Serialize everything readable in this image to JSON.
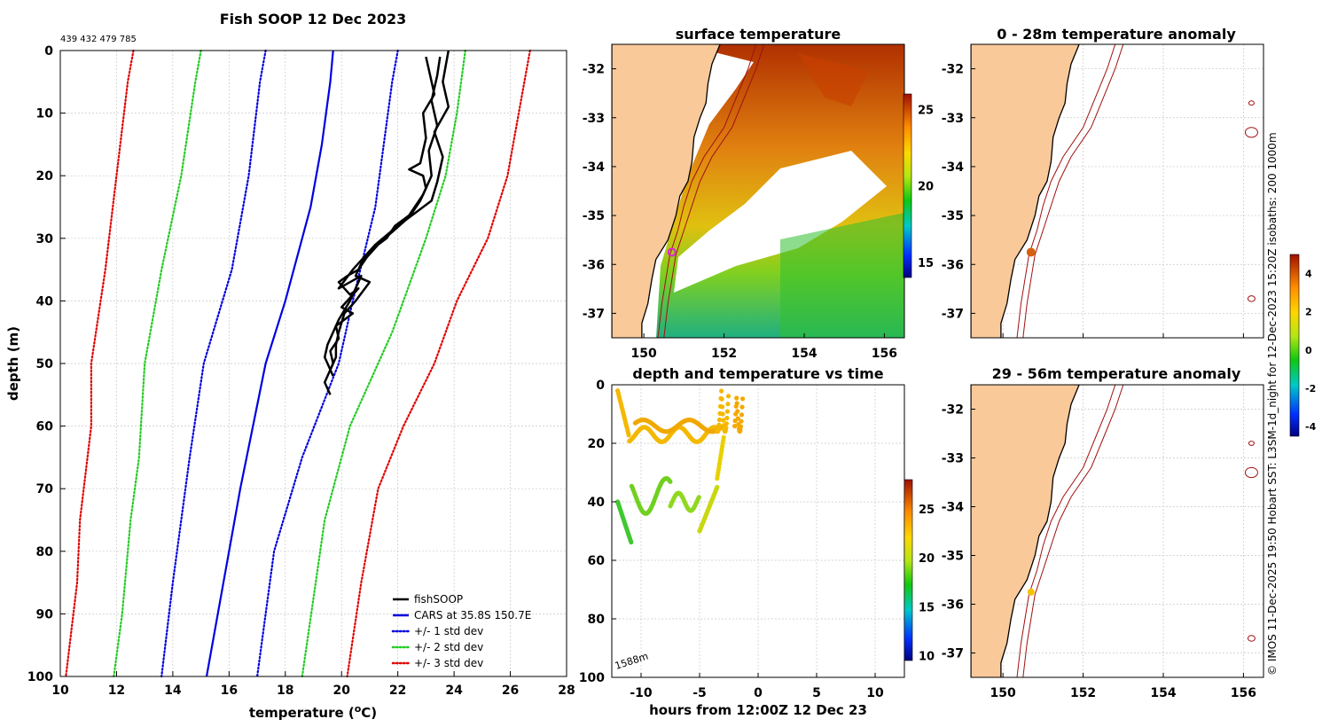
{
  "colors": {
    "land": "#f9c99a",
    "fishsoop": "#000000",
    "cars": "#0000e0",
    "std1": "#0000e0",
    "std2": "#22cc22",
    "std3": "#e00000",
    "grid": "#c8c8c8",
    "isobath": "#a01010",
    "marker_surface": "#e020e0",
    "marker_anom1": "#d66010",
    "marker_anom2": "#f4c000"
  },
  "copyright": "© IMOS 11-Dec-2025 19:50 Hobart SST: L3SM-1d_night for 12-Dec-2023 15:20Z isobaths: 200  1000m",
  "chart_data": [
    {
      "id": "profile",
      "type": "line",
      "title": "Fish SOOP 12 Dec 2023",
      "subtitle": "439 432 479 785",
      "xlabel_main": "temperature (",
      "xlabel_sup": "o",
      "xlabel_end": "C)",
      "ylabel": "depth (m)",
      "xlim": [
        10,
        28
      ],
      "ylim": [
        0,
        100
      ],
      "xticks": [
        10,
        12,
        14,
        16,
        18,
        20,
        22,
        24,
        26,
        28
      ],
      "yticks": [
        0,
        10,
        20,
        30,
        40,
        50,
        60,
        70,
        80,
        90,
        100
      ],
      "legend": [
        "fishSOOP",
        "CARS at 35.8S 150.7E",
        "+/- 1 std dev",
        "+/- 2 std dev",
        "+/- 3 std dev"
      ],
      "series": [
        {
          "name": "CARS mean",
          "style": "solid",
          "color": "cars",
          "points": [
            [
              19.7,
              0
            ],
            [
              19.6,
              5
            ],
            [
              19.3,
              15
            ],
            [
              18.9,
              25
            ],
            [
              18.0,
              40
            ],
            [
              17.3,
              50
            ],
            [
              16.4,
              70
            ],
            [
              15.8,
              85
            ],
            [
              15.2,
              100
            ]
          ]
        },
        {
          "name": "-1 std",
          "style": "dot",
          "color": "std1",
          "points": [
            [
              17.3,
              0
            ],
            [
              17.1,
              5
            ],
            [
              16.7,
              20
            ],
            [
              16.1,
              35
            ],
            [
              15.1,
              50
            ],
            [
              14.6,
              65
            ],
            [
              14.0,
              85
            ],
            [
              13.6,
              100
            ]
          ]
        },
        {
          "name": "+1 std",
          "style": "dot",
          "color": "std1",
          "points": [
            [
              22.0,
              0
            ],
            [
              21.8,
              5
            ],
            [
              21.5,
              15
            ],
            [
              21.2,
              25
            ],
            [
              20.4,
              40
            ],
            [
              19.9,
              50
            ],
            [
              18.6,
              65
            ],
            [
              17.6,
              80
            ],
            [
              17.0,
              100
            ]
          ]
        },
        {
          "name": "-2 std",
          "style": "dot",
          "color": "std2",
          "points": [
            [
              15.0,
              0
            ],
            [
              14.8,
              5
            ],
            [
              14.3,
              20
            ],
            [
              13.6,
              35
            ],
            [
              13.0,
              50
            ],
            [
              12.8,
              65
            ],
            [
              12.5,
              75
            ],
            [
              12.2,
              90
            ],
            [
              11.9,
              100
            ]
          ]
        },
        {
          "name": "+2 std",
          "style": "dot",
          "color": "std2",
          "points": [
            [
              24.4,
              0
            ],
            [
              24.1,
              10
            ],
            [
              23.7,
              20
            ],
            [
              23.0,
              30
            ],
            [
              22.2,
              40
            ],
            [
              21.8,
              45
            ],
            [
              20.3,
              60
            ],
            [
              19.4,
              75
            ],
            [
              18.6,
              100
            ]
          ]
        },
        {
          "name": "-3 std",
          "style": "dot",
          "color": "std3",
          "points": [
            [
              12.6,
              0
            ],
            [
              12.4,
              5
            ],
            [
              12.0,
              20
            ],
            [
              11.6,
              35
            ],
            [
              11.1,
              50
            ],
            [
              11.1,
              60
            ],
            [
              10.7,
              75
            ],
            [
              10.6,
              85
            ],
            [
              10.2,
              100
            ]
          ]
        },
        {
          "name": "+3 std",
          "style": "dot",
          "color": "std3",
          "points": [
            [
              26.7,
              0
            ],
            [
              26.5,
              5
            ],
            [
              26.1,
              15
            ],
            [
              25.9,
              20
            ],
            [
              25.2,
              30
            ],
            [
              24.1,
              40
            ],
            [
              23.3,
              50
            ],
            [
              22.2,
              60
            ],
            [
              21.3,
              70
            ],
            [
              20.7,
              85
            ],
            [
              20.2,
              100
            ]
          ]
        },
        {
          "name": "fishSOOP",
          "style": "solid",
          "color": "fishsoop",
          "width": 2.5,
          "points": [
            [
              23.0,
              1
            ],
            [
              23.1,
              3
            ],
            [
              23.3,
              7
            ],
            [
              22.9,
              10
            ],
            [
              23.0,
              14
            ],
            [
              22.8,
              18
            ],
            [
              22.4,
              19
            ],
            [
              22.9,
              20
            ],
            [
              23.0,
              22
            ],
            [
              22.8,
              24
            ],
            [
              22.5,
              26
            ],
            [
              21.9,
              28
            ],
            [
              21.6,
              30
            ],
            [
              21.3,
              31
            ],
            [
              20.9,
              33
            ],
            [
              20.6,
              35
            ],
            [
              20.2,
              36
            ],
            [
              19.9,
              37
            ],
            [
              20.3,
              39
            ],
            [
              20.6,
              38
            ],
            [
              20.0,
              41
            ],
            [
              20.4,
              42
            ],
            [
              19.8,
              44
            ],
            [
              19.9,
              46
            ],
            [
              19.6,
              48
            ],
            [
              19.7,
              50
            ],
            [
              19.4,
              53
            ],
            [
              19.6,
              55
            ]
          ]
        },
        {
          "name": "fishSOOP b",
          "style": "solid",
          "color": "fishsoop",
          "width": 2.5,
          "points": [
            [
              23.5,
              1
            ],
            [
              23.4,
              4
            ],
            [
              23.2,
              8
            ],
            [
              23.4,
              12
            ],
            [
              23.1,
              16
            ],
            [
              23.2,
              20
            ],
            [
              22.9,
              23
            ],
            [
              22.3,
              27
            ],
            [
              21.8,
              29
            ],
            [
              21.0,
              32
            ],
            [
              20.7,
              34
            ],
            [
              20.5,
              36
            ],
            [
              21.0,
              37
            ],
            [
              20.5,
              40
            ],
            [
              20.1,
              42
            ],
            [
              19.9,
              45
            ],
            [
              19.8,
              47
            ],
            [
              19.8,
              49
            ],
            [
              19.6,
              51
            ]
          ]
        },
        {
          "name": "fishSOOP c",
          "style": "solid",
          "color": "fishsoop",
          "width": 2.5,
          "points": [
            [
              23.8,
              0
            ],
            [
              23.6,
              5
            ],
            [
              23.8,
              9
            ],
            [
              23.3,
              13
            ],
            [
              23.6,
              17
            ],
            [
              23.4,
              21
            ],
            [
              23.2,
              24
            ],
            [
              22.6,
              26
            ],
            [
              22.0,
              28
            ],
            [
              21.2,
              31
            ],
            [
              20.4,
              35
            ],
            [
              19.9,
              38
            ],
            [
              20.7,
              36
            ],
            [
              20.3,
              40
            ],
            [
              19.9,
              43
            ],
            [
              19.5,
              47
            ],
            [
              19.4,
              49
            ],
            [
              19.7,
              52
            ]
          ]
        }
      ]
    },
    {
      "id": "surface",
      "type": "heatmap",
      "title": "surface temperature",
      "xlim": [
        149.2,
        156.5
      ],
      "ylim": [
        -37.5,
        -31.5
      ],
      "xticks": [
        150,
        152,
        154,
        156
      ],
      "yticks": [
        -32,
        -33,
        -34,
        -35,
        -36,
        -37
      ],
      "colorbar_ticks": [
        15,
        20,
        25
      ],
      "colorbar_range": [
        14,
        26
      ],
      "marker": {
        "lon": 150.7,
        "lat": -35.75
      }
    },
    {
      "id": "timeseries",
      "type": "scatter",
      "title": "depth and temperature vs time",
      "xlabel": "hours from 12:00Z 12 Dec 23",
      "xlim": [
        -12.5,
        12.5
      ],
      "ylim": [
        0,
        100
      ],
      "xticks": [
        -10,
        -5,
        0,
        5,
        10
      ],
      "yticks": [
        0,
        20,
        40,
        60,
        80,
        100
      ],
      "colorbar_ticks": [
        10,
        15,
        20,
        25
      ],
      "colorbar_range": [
        9.5,
        28
      ],
      "annotation": "1588m"
    },
    {
      "id": "anom1",
      "type": "map",
      "title": "0 - 28m temperature anomaly",
      "xlim": [
        149.2,
        156.5
      ],
      "ylim": [
        -37.5,
        -31.5
      ],
      "xticks": [
        150,
        152,
        154,
        156
      ],
      "yticks": [
        -32,
        -33,
        -34,
        -35,
        -36,
        -37
      ],
      "marker": {
        "lon": 150.7,
        "lat": -35.75
      }
    },
    {
      "id": "anom2",
      "type": "map",
      "title": "29 - 56m temperature anomaly",
      "xlim": [
        149.2,
        156.5
      ],
      "ylim": [
        -37.5,
        -31.5
      ],
      "xticks": [
        150,
        152,
        154,
        156
      ],
      "yticks": [
        -32,
        -33,
        -34,
        -35,
        -36,
        -37
      ],
      "marker": {
        "lon": 150.7,
        "lat": -35.75
      },
      "colorbar_ticks": [
        4,
        2,
        0,
        -2,
        -4
      ],
      "colorbar_range": [
        -4.5,
        5
      ]
    }
  ]
}
